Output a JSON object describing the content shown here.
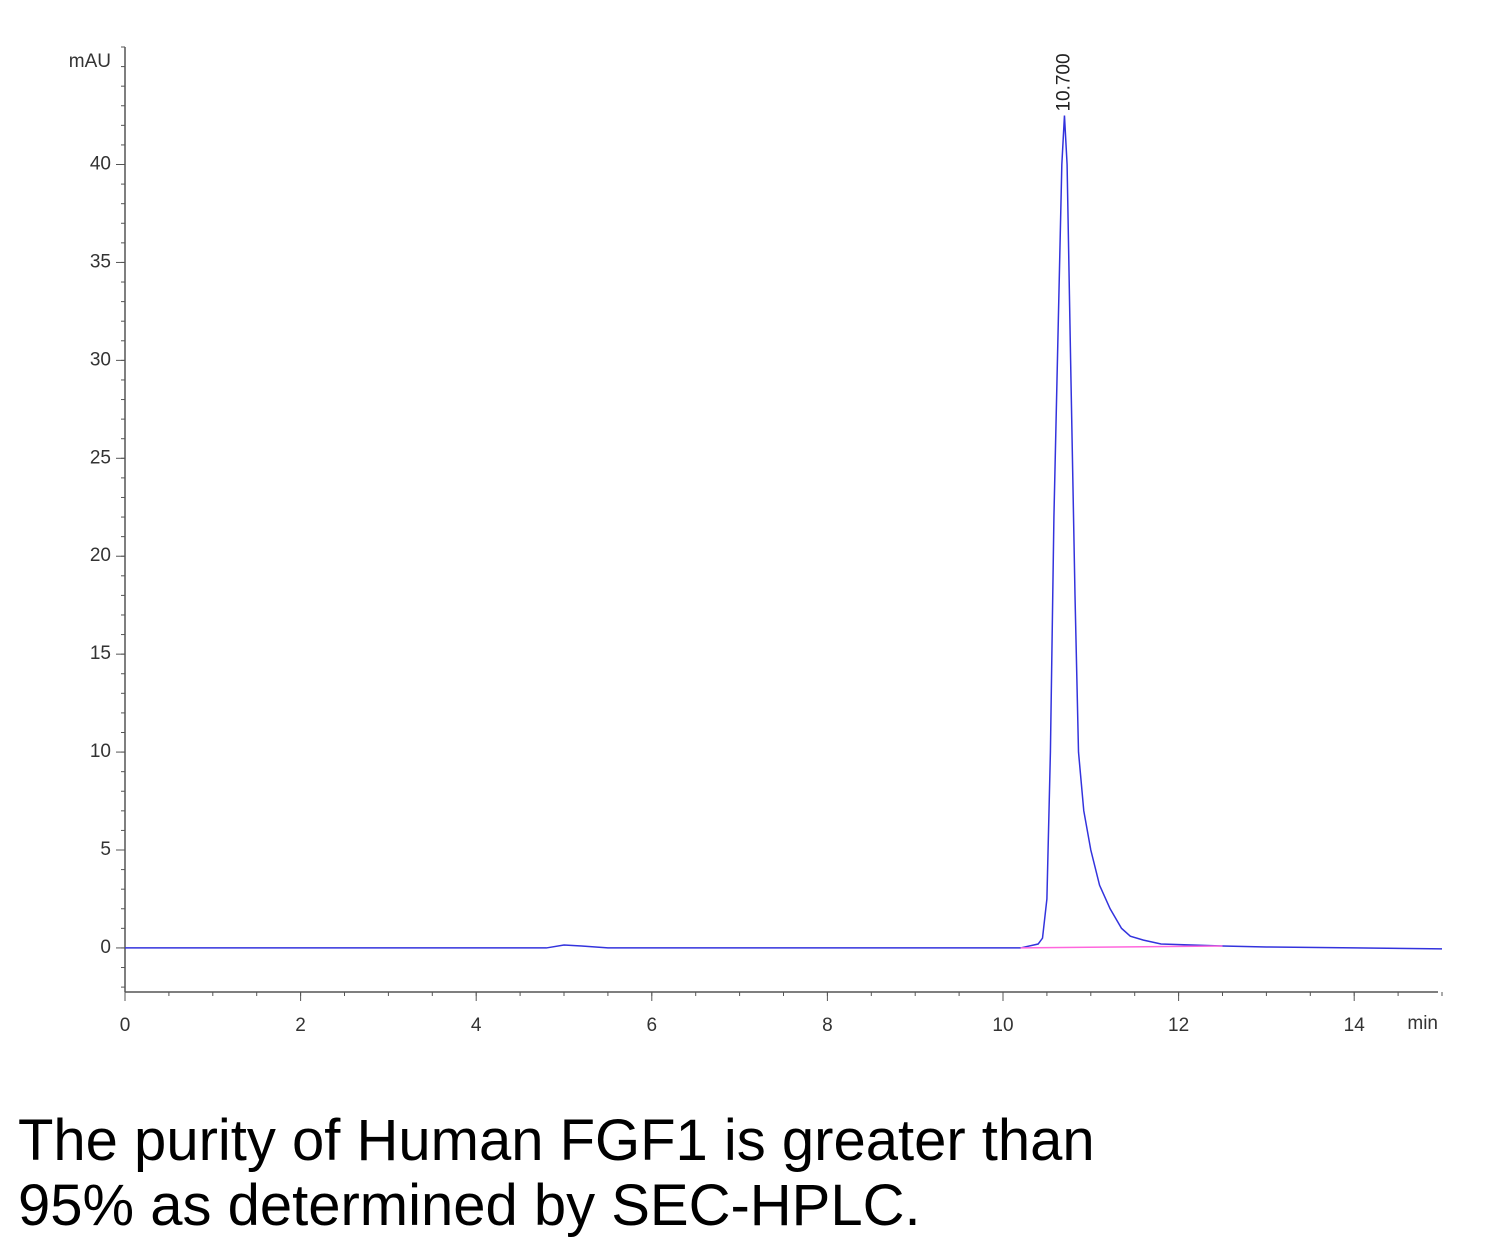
{
  "chart_data": {
    "type": "line",
    "ylabel": "mAU",
    "xlabel": "min",
    "xlim": [
      0,
      15
    ],
    "ylim": [
      -2.25,
      46
    ],
    "xticks": [
      0,
      2,
      4,
      6,
      8,
      10,
      12,
      14
    ],
    "yticks": [
      0,
      5,
      10,
      15,
      20,
      25,
      30,
      35,
      40
    ],
    "series": [
      {
        "color": "#3333dd",
        "x": [
          0,
          4.8,
          5.0,
          5.2,
          5.5,
          10.2,
          10.4,
          10.45,
          10.5,
          10.54,
          10.58,
          10.63,
          10.67,
          10.7,
          10.73,
          10.77,
          10.82,
          10.86,
          10.92,
          11.0,
          11.1,
          11.22,
          11.35,
          11.45,
          11.6,
          11.8,
          12.5,
          13.0,
          14.0,
          15.0
        ],
        "values": [
          0,
          0,
          0.15,
          0.1,
          0,
          0,
          0.2,
          0.5,
          2.5,
          10,
          22,
          32,
          40,
          42.5,
          40,
          30,
          18,
          10,
          7,
          5,
          3.2,
          2,
          1,
          0.6,
          0.4,
          0.2,
          0.1,
          0.05,
          0,
          -0.05
        ]
      },
      {
        "color": "#ff66dd",
        "x": [
          10.2,
          12.5
        ],
        "values": [
          0,
          0.1
        ]
      }
    ],
    "annotations": [
      {
        "text": "10.700",
        "x": 10.7,
        "y": 42.5
      }
    ]
  },
  "caption": [
    "The purity of Human FGF1 is greater than",
    "95% as determined by SEC-HPLC."
  ]
}
